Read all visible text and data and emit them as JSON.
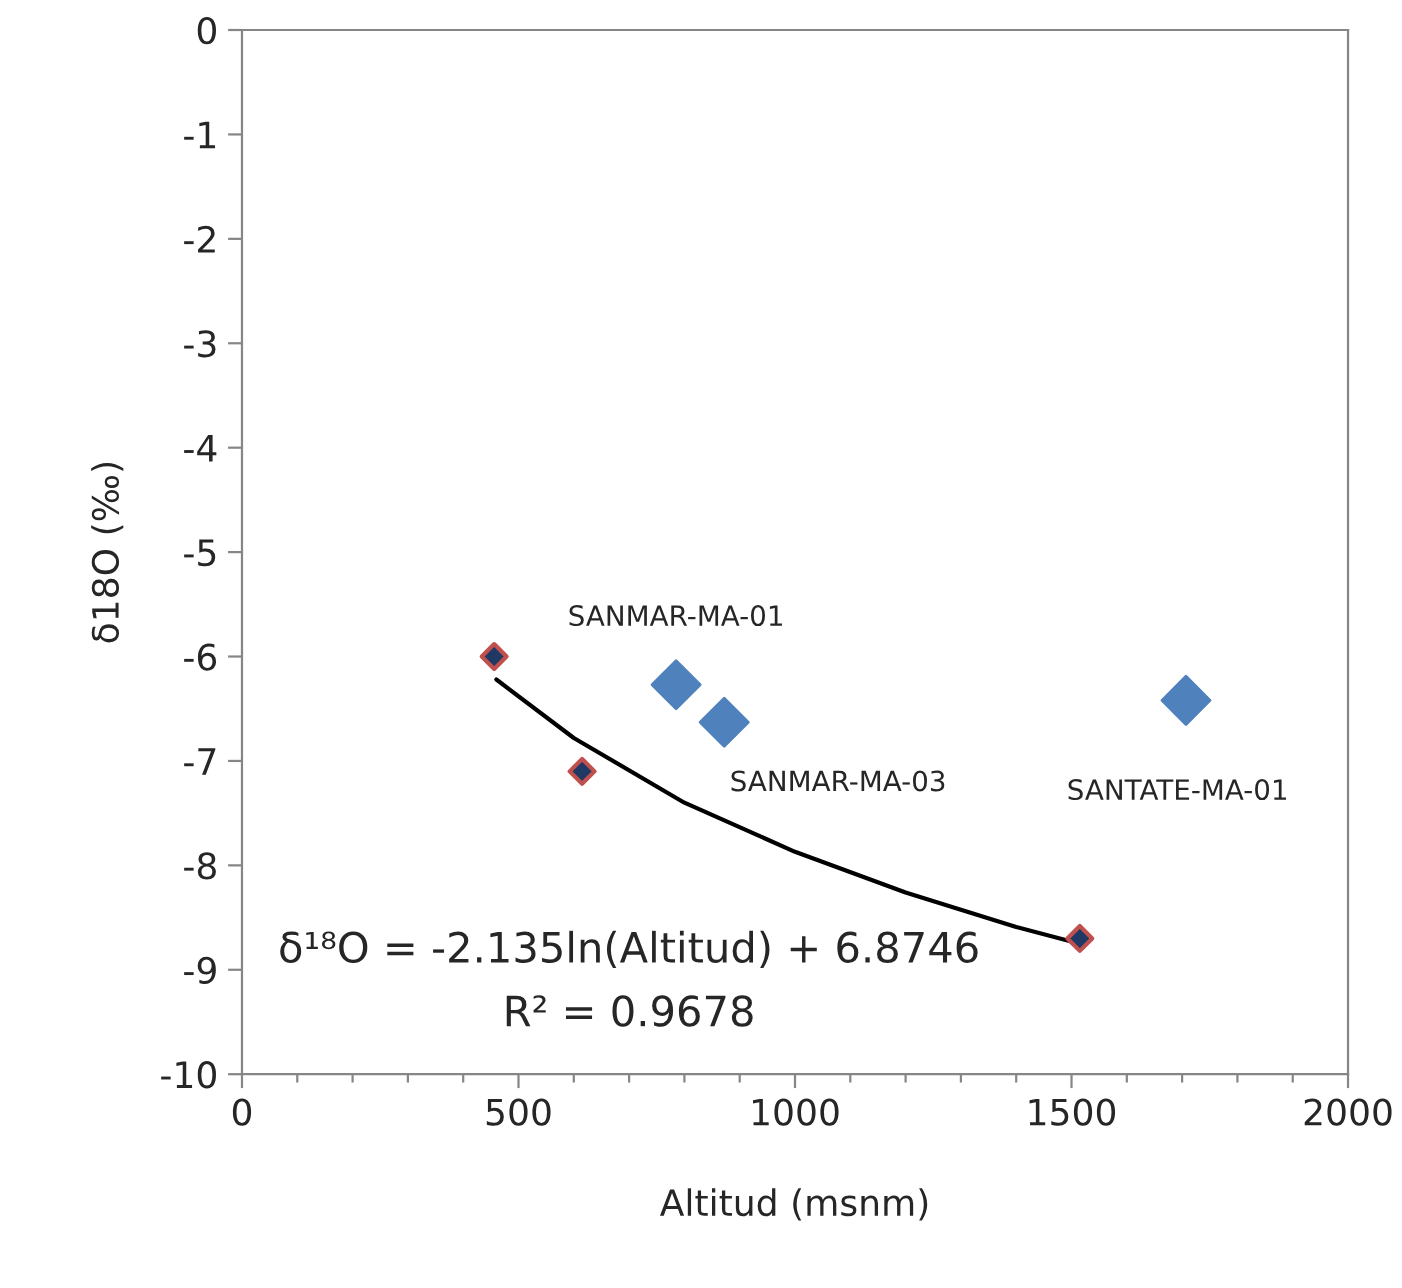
{
  "chart_data": {
    "type": "scatter",
    "xlabel": "Altitud (msnm)",
    "ylabel": "δ18O (‰)",
    "xlim": [
      0,
      2000
    ],
    "ylim": [
      -10,
      0
    ],
    "xticks": [
      0,
      {
        "value": 100,
        "label": null
      },
      {
        "value": 200,
        "label": null
      },
      {
        "value": 300,
        "label": null
      },
      {
        "value": 400,
        "label": null
      },
      500,
      {
        "value": 600,
        "label": null
      },
      {
        "value": 700,
        "label": null
      },
      {
        "value": 800,
        "label": null
      },
      {
        "value": 900,
        "label": null
      },
      1000,
      {
        "value": 1100,
        "label": null
      },
      {
        "value": 1200,
        "label": null
      },
      {
        "value": 1300,
        "label": null
      },
      {
        "value": 1400,
        "label": null
      },
      1500,
      {
        "value": 1600,
        "label": null
      },
      {
        "value": 1700,
        "label": null
      },
      {
        "value": 1800,
        "label": null
      },
      {
        "value": 1900,
        "label": null
      },
      2000
    ],
    "yticks": [
      {
        "value": -10,
        "label": "-10"
      },
      {
        "value": -9,
        "label": "-9"
      },
      {
        "value": -8,
        "label": "-8"
      },
      {
        "value": -7,
        "label": "-7"
      },
      {
        "value": -6,
        "label": "-6"
      },
      {
        "value": -5,
        "label": "-5"
      },
      {
        "value": -4,
        "label": "-4"
      },
      {
        "value": -3,
        "label": "-3"
      },
      {
        "value": -2,
        "label": "-2"
      },
      {
        "value": -1,
        "label": "-1"
      },
      0
    ],
    "grid": false,
    "legend": false,
    "marker": "diamond",
    "series": [
      {
        "color": "#1f3864",
        "x": [
          456,
          615,
          1515
        ],
        "values": [
          -6.0,
          -7.1,
          -8.7
        ]
      },
      {
        "color": "#4f81bd",
        "x": [
          785,
          872,
          1707
        ],
        "values": [
          -6.27,
          -6.63,
          -6.42
        ]
      },
      {
        "type": "line",
        "color": "#000000",
        "marker": "none",
        "x": [
          460,
          600,
          800,
          1000,
          1200,
          1400,
          1515
        ],
        "values": [
          -6.22,
          -6.78,
          -7.4,
          -7.87,
          -8.26,
          -8.59,
          -8.75
        ]
      }
    ],
    "annotations": [
      {
        "text": "SANMAR-MA-01",
        "x": 785,
        "y": -6.27
      },
      {
        "text": "SANMAR-MA-03",
        "x": 872,
        "y": -6.63
      },
      {
        "text": "SANTATE-MA-01",
        "x": 1707,
        "y": -6.42
      },
      "δ¹⁸O = -2.135ln(Altitud) + 6.8746",
      "R² = 0.9678"
    ]
  }
}
